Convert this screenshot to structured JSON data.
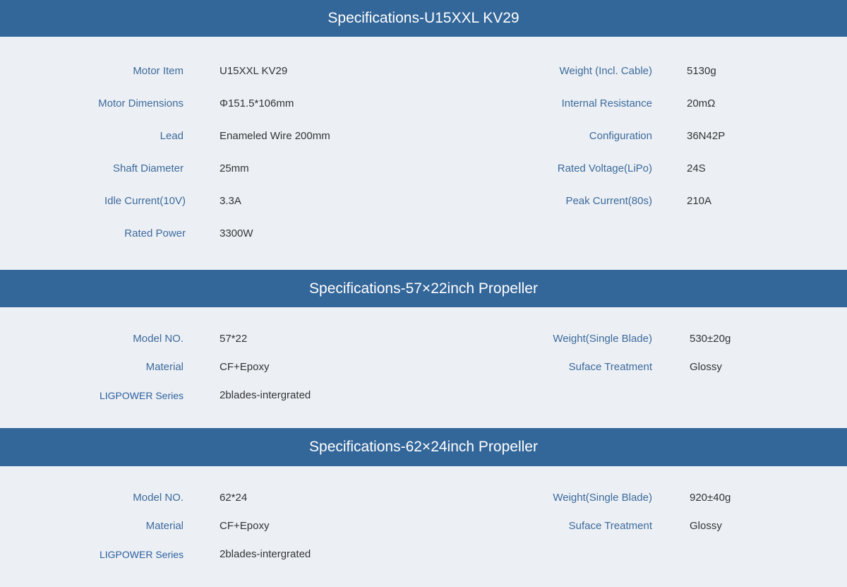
{
  "colors": {
    "header_bg": "#336699",
    "body_bg": "#ecf0f5",
    "label": "#3d6a9b",
    "value": "#333333"
  },
  "sections": [
    {
      "title": "Specifications-U15XXL KV29",
      "left": [
        [
          "Motor Item",
          "U15XXL KV29"
        ],
        [
          "Motor Dimensions",
          "Φ151.5*106mm"
        ],
        [
          "Lead",
          "Enameled Wire 200mm"
        ],
        [
          "Shaft Diameter",
          "25mm"
        ],
        [
          "Idle Current(10V)",
          "3.3A"
        ],
        [
          "Rated Power",
          "3300W"
        ]
      ],
      "right": [
        [
          "Weight (Incl. Cable)",
          "5130g"
        ],
        [
          "Internal Resistance",
          "20mΩ"
        ],
        [
          "Configuration",
          "36N42P"
        ],
        [
          "Rated Voltage(LiPo)",
          "24S"
        ],
        [
          "Peak Current(80s)",
          "210A"
        ]
      ]
    },
    {
      "title": "Specifications-57×22inch Propeller",
      "left": [
        [
          "Model NO.",
          "57*22"
        ],
        [
          "Material",
          "CF+Epoxy"
        ],
        [
          "LIGPOWER Series",
          "2blades-intergrated"
        ]
      ],
      "right": [
        [
          "Weight(Single Blade)",
          "530±20g"
        ],
        [
          "Suface Treatment",
          "Glossy"
        ]
      ]
    },
    {
      "title": "Specifications-62×24inch Propeller",
      "left": [
        [
          "Model NO.",
          "62*24"
        ],
        [
          "Material",
          "CF+Epoxy"
        ],
        [
          "LIGPOWER Series",
          "2blades-intergrated"
        ]
      ],
      "right": [
        [
          "Weight(Single Blade)",
          "920±40g"
        ],
        [
          "Suface Treatment",
          "Glossy"
        ]
      ]
    }
  ]
}
